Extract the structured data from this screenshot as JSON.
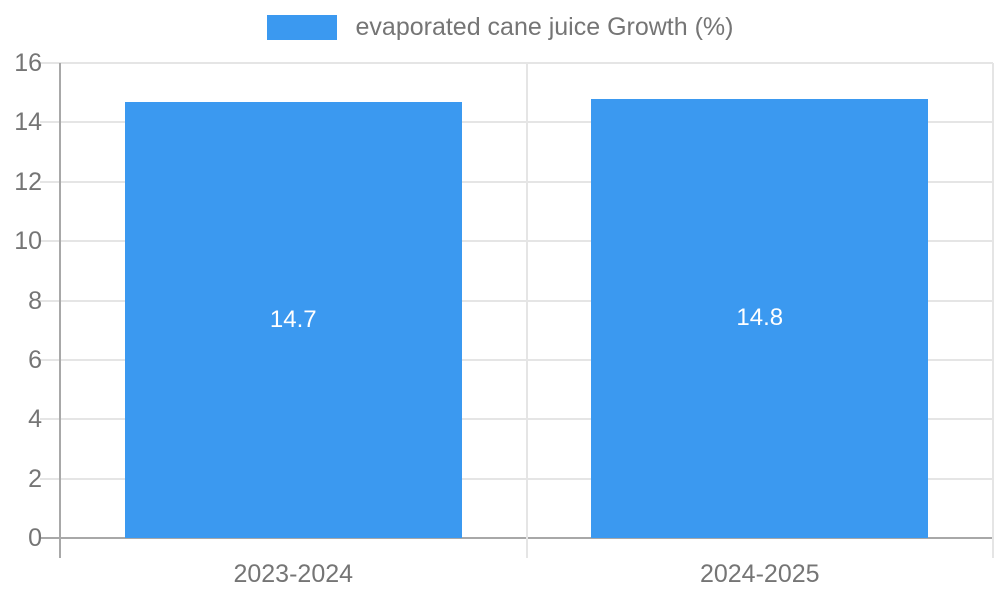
{
  "legend": {
    "label": "evaporated cane juice Growth (%)"
  },
  "chart_data": {
    "type": "bar",
    "title": "",
    "xlabel": "",
    "ylabel": "",
    "categories": [
      "2023-2024",
      "2024-2025"
    ],
    "series": [
      {
        "name": "evaporated cane juice Growth (%)",
        "values": [
          14.7,
          14.8
        ]
      }
    ],
    "value_labels": [
      "14.7",
      "14.8"
    ],
    "ylim": [
      0,
      16
    ],
    "ytick_step": 2,
    "ytick_labels": [
      "0",
      "2",
      "4",
      "6",
      "8",
      "10",
      "12",
      "14",
      "16"
    ],
    "grid": true,
    "legend_position": "top",
    "colors": {
      "bar": "#3B99F0",
      "grid": "#E5E5E5",
      "axis": "#A8A8A8",
      "text": "#757575",
      "value_label": "#FFFFFF",
      "background": "#FFFFFF"
    }
  }
}
